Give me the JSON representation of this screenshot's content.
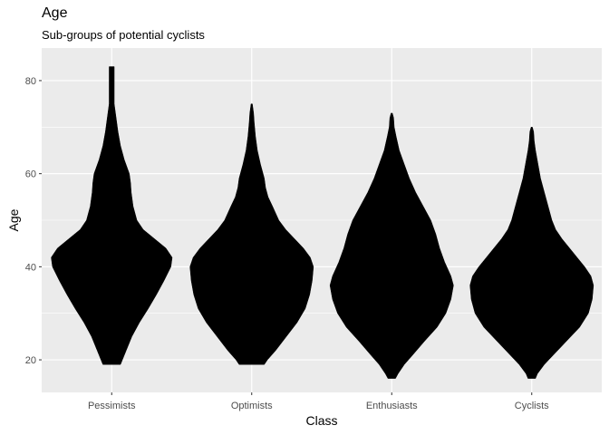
{
  "chart_data": {
    "type": "violin",
    "title": "Age",
    "subtitle": "Sub-groups of potential cyclists",
    "xlabel": "Class",
    "ylabel": "Age",
    "categories": [
      "Pessimists",
      "Optimists",
      "Enthusiasts",
      "Cyclists"
    ],
    "ylim": [
      13,
      87
    ],
    "yticks": [
      20,
      40,
      60,
      80
    ],
    "grid": true,
    "legend": "none",
    "fill_color": "#000000",
    "panel_color": "#ebebeb",
    "violins": [
      {
        "category": "Pessimists",
        "min": 19,
        "max": 83,
        "profile": [
          [
            19,
            0.14
          ],
          [
            20,
            0.17
          ],
          [
            22,
            0.23
          ],
          [
            25,
            0.32
          ],
          [
            28,
            0.44
          ],
          [
            31,
            0.58
          ],
          [
            34,
            0.71
          ],
          [
            37,
            0.83
          ],
          [
            40,
            0.94
          ],
          [
            42,
            0.96
          ],
          [
            44,
            0.86
          ],
          [
            46,
            0.68
          ],
          [
            48,
            0.5
          ],
          [
            50,
            0.4
          ],
          [
            53,
            0.34
          ],
          [
            56,
            0.31
          ],
          [
            58,
            0.3
          ],
          [
            60,
            0.28
          ],
          [
            63,
            0.2
          ],
          [
            66,
            0.14
          ],
          [
            69,
            0.1
          ],
          [
            72,
            0.07
          ],
          [
            74,
            0.05
          ],
          [
            75,
            0.04
          ],
          [
            76,
            0.04
          ],
          [
            83,
            0.04
          ]
        ]
      },
      {
        "category": "Optimists",
        "min": 19,
        "max": 75,
        "profile": [
          [
            19,
            0.2
          ],
          [
            20,
            0.25
          ],
          [
            22,
            0.38
          ],
          [
            25,
            0.55
          ],
          [
            28,
            0.72
          ],
          [
            31,
            0.85
          ],
          [
            34,
            0.92
          ],
          [
            37,
            0.96
          ],
          [
            40,
            0.98
          ],
          [
            42,
            0.93
          ],
          [
            44,
            0.82
          ],
          [
            46,
            0.68
          ],
          [
            48,
            0.54
          ],
          [
            50,
            0.43
          ],
          [
            53,
            0.33
          ],
          [
            55,
            0.26
          ],
          [
            57,
            0.22
          ],
          [
            59,
            0.2
          ],
          [
            62,
            0.14
          ],
          [
            65,
            0.09
          ],
          [
            68,
            0.06
          ],
          [
            71,
            0.04
          ],
          [
            73,
            0.03
          ],
          [
            75,
            0.01
          ]
        ]
      },
      {
        "category": "Enthusiasts",
        "min": 16,
        "max": 73,
        "profile": [
          [
            16,
            0.06
          ],
          [
            17,
            0.1
          ],
          [
            19,
            0.2
          ],
          [
            21,
            0.33
          ],
          [
            24,
            0.52
          ],
          [
            27,
            0.72
          ],
          [
            30,
            0.86
          ],
          [
            33,
            0.94
          ],
          [
            36,
            0.98
          ],
          [
            38,
            0.94
          ],
          [
            41,
            0.84
          ],
          [
            44,
            0.76
          ],
          [
            47,
            0.7
          ],
          [
            50,
            0.62
          ],
          [
            53,
            0.5
          ],
          [
            56,
            0.38
          ],
          [
            59,
            0.28
          ],
          [
            62,
            0.2
          ],
          [
            65,
            0.12
          ],
          [
            68,
            0.07
          ],
          [
            70,
            0.04
          ],
          [
            72,
            0.03
          ],
          [
            73,
            0.01
          ]
        ]
      },
      {
        "category": "Cyclists",
        "min": 16,
        "max": 70,
        "profile": [
          [
            16,
            0.06
          ],
          [
            17,
            0.09
          ],
          [
            19,
            0.2
          ],
          [
            21,
            0.34
          ],
          [
            24,
            0.55
          ],
          [
            27,
            0.76
          ],
          [
            30,
            0.9
          ],
          [
            33,
            0.96
          ],
          [
            36,
            0.98
          ],
          [
            38,
            0.94
          ],
          [
            40,
            0.84
          ],
          [
            42,
            0.72
          ],
          [
            44,
            0.6
          ],
          [
            46,
            0.48
          ],
          [
            48,
            0.38
          ],
          [
            50,
            0.32
          ],
          [
            53,
            0.26
          ],
          [
            56,
            0.2
          ],
          [
            59,
            0.14
          ],
          [
            62,
            0.1
          ],
          [
            65,
            0.06
          ],
          [
            67,
            0.04
          ],
          [
            69,
            0.03
          ],
          [
            70,
            0.01
          ]
        ]
      }
    ]
  }
}
